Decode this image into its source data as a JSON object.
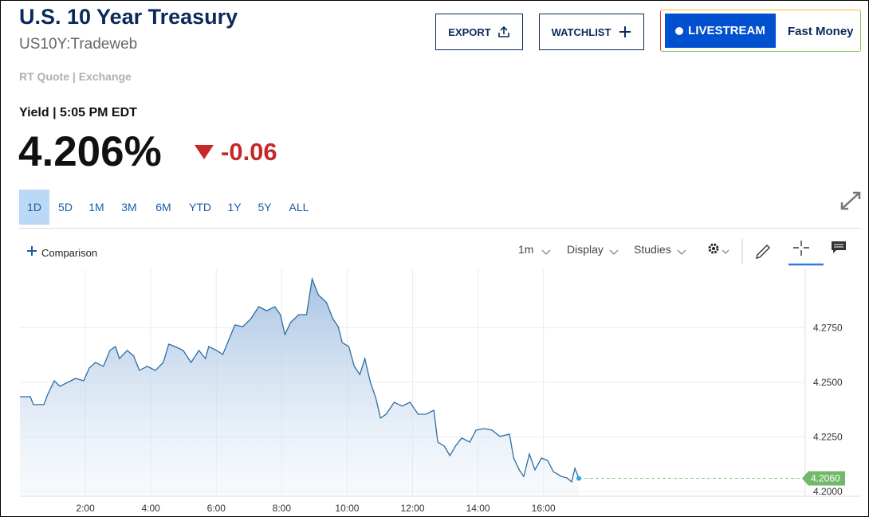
{
  "header": {
    "title": "U.S. 10 Year Treasury",
    "symbol": "US10Y:Tradeweb",
    "quote_source": "RT Quote | Exchange"
  },
  "buttons": {
    "export": "EXPORT",
    "watchlist": "WATCHLIST",
    "livestream": "LIVESTREAM",
    "fast_money": "Fast Money"
  },
  "quote": {
    "label": "Yield | 5:05 PM EDT",
    "price": "4.206%",
    "change": "-0.06"
  },
  "ranges": [
    "1D",
    "5D",
    "1M",
    "3M",
    "6M",
    "YTD",
    "1Y",
    "5Y",
    "ALL"
  ],
  "toolbar": {
    "comparison": "Comparison",
    "interval": "1m",
    "display": "Display",
    "studies": "Studies"
  },
  "chart_data": {
    "type": "line",
    "color": "#2e6da4",
    "grid": true,
    "x": [
      0.0,
      0.32,
      0.41,
      0.73,
      0.85,
      1.05,
      1.22,
      1.46,
      1.7,
      1.95,
      2.12,
      2.31,
      2.55,
      2.75,
      2.92,
      3.04,
      3.28,
      3.48,
      3.65,
      3.89,
      4.14,
      4.38,
      4.55,
      4.74,
      4.99,
      5.23,
      5.47,
      5.67,
      5.77,
      6.01,
      6.2,
      6.4,
      6.57,
      6.81,
      7.06,
      7.3,
      7.54,
      7.79,
      7.96,
      8.1,
      8.27,
      8.52,
      8.76,
      8.93,
      9.12,
      9.37,
      9.56,
      9.73,
      9.85,
      10.05,
      10.22,
      10.39,
      10.54,
      10.71,
      10.88,
      11.02,
      11.19,
      11.44,
      11.68,
      11.92,
      12.17,
      12.41,
      12.65,
      12.77,
      12.97,
      13.14,
      13.31,
      13.5,
      13.75,
      13.94,
      14.19,
      14.43,
      14.67,
      14.96,
      15.09,
      15.26,
      15.4,
      15.57,
      15.74,
      15.94,
      16.13,
      16.3,
      16.55,
      16.72,
      16.86,
      16.96,
      17.08
    ],
    "values": [
      4.2434,
      4.2434,
      4.2398,
      4.2398,
      4.2445,
      4.2507,
      4.2482,
      4.25,
      4.2518,
      4.2507,
      4.2566,
      4.2591,
      4.2573,
      4.2646,
      4.2664,
      4.2609,
      4.2646,
      4.262,
      4.2555,
      4.2573,
      4.2555,
      4.2591,
      4.2675,
      4.2664,
      4.2646,
      4.2591,
      4.2646,
      4.2609,
      4.2664,
      4.2646,
      4.2628,
      4.2701,
      4.2763,
      4.2755,
      4.2792,
      4.2847,
      4.2828,
      4.2847,
      4.281,
      4.2719,
      4.2774,
      4.281,
      4.281,
      4.2974,
      4.2901,
      4.2865,
      4.2792,
      4.2755,
      4.2682,
      4.2664,
      4.2573,
      4.2536,
      4.2609,
      4.25,
      4.2427,
      4.2336,
      4.2354,
      4.2409,
      4.2391,
      4.2409,
      4.2354,
      4.2354,
      4.2372,
      4.2226,
      4.2208,
      4.2164,
      4.2208,
      4.2245,
      4.2226,
      4.2281,
      4.2288,
      4.2281,
      4.2252,
      4.2263,
      4.2153,
      4.2099,
      4.2069,
      4.2172,
      4.2099,
      4.2153,
      4.2142,
      4.2091,
      4.2069,
      4.2062,
      4.2044,
      4.2106,
      4.206
    ],
    "current": {
      "value": 4.206,
      "label": "4.2060"
    },
    "xlim": [
      0,
      24
    ],
    "xticks": [
      {
        "value": 2,
        "label": "2:00"
      },
      {
        "value": 4,
        "label": "4:00"
      },
      {
        "value": 6,
        "label": "6:00"
      },
      {
        "value": 8,
        "label": "8:00"
      },
      {
        "value": 10,
        "label": "10:00"
      },
      {
        "value": 12,
        "label": "12:00"
      },
      {
        "value": 14,
        "label": "14:00"
      },
      {
        "value": 16,
        "label": "16:00"
      }
    ],
    "ylim": [
      4.1978,
      4.3018
    ],
    "yticks": [
      {
        "value": 4.2,
        "label": "4.2000"
      },
      {
        "value": 4.225,
        "label": "4.2250"
      },
      {
        "value": 4.25,
        "label": "4.2500"
      },
      {
        "value": 4.275,
        "label": "4.2750"
      }
    ]
  }
}
